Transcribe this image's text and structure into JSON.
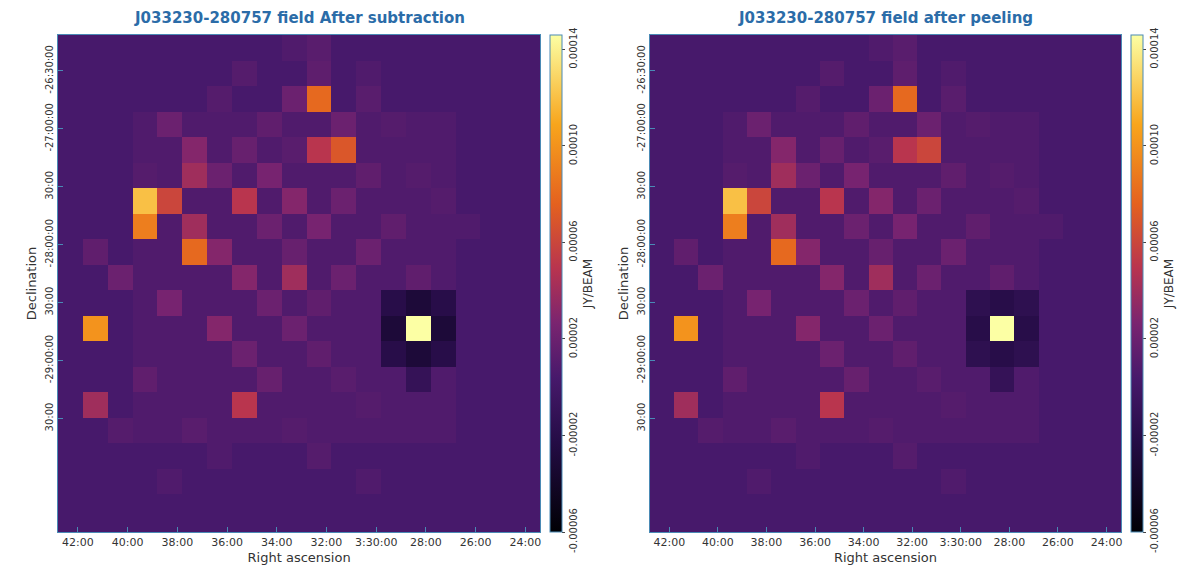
{
  "chart_data": [
    {
      "type": "heatmap",
      "title": "J033230-280757 field After subtraction",
      "x_label": "Right ascension",
      "y_label": "Declination",
      "colorbar_label": "JY/BEAM",
      "xlim": [
        42.8,
        23.4
      ],
      "ylim": [
        -30.48,
        -26.19
      ],
      "xticks": [
        {
          "value": 42,
          "label": "42:00"
        },
        {
          "value": 40,
          "label": "40:00"
        },
        {
          "value": 38,
          "label": "38:00"
        },
        {
          "value": 36,
          "label": "36:00"
        },
        {
          "value": 34,
          "label": "34:00"
        },
        {
          "value": 32,
          "label": "32:00"
        },
        {
          "value": 30,
          "label": "3:30:00"
        },
        {
          "value": 28,
          "label": "28:00"
        },
        {
          "value": 26,
          "label": "26:00"
        },
        {
          "value": 24,
          "label": "24:00"
        }
      ],
      "yticks": [
        {
          "value": -26.5,
          "label": "-26:30:00"
        },
        {
          "value": -27,
          "label": "-27:00:00"
        },
        {
          "value": -27.5,
          "label": "30:00"
        },
        {
          "value": -28,
          "label": "-28:00:00"
        },
        {
          "value": -28.5,
          "label": "30:00"
        },
        {
          "value": -29,
          "label": "-29:00:00"
        },
        {
          "value": -29.5,
          "label": "30:00"
        }
      ],
      "zlim": [
        -6e-05,
        0.000146
      ],
      "zticks": [
        -6e-05,
        -2e-05,
        2e-05,
        6e-05,
        {
          "value": 0.0001,
          "label": "0.00010"
        },
        0.00014
      ],
      "x": [
        42.3,
        41.3,
        40.3,
        39.3,
        38.3,
        37.3,
        36.3,
        35.3,
        34.3,
        33.3,
        32.3,
        31.3,
        30.3,
        29.3,
        28.3,
        27.3,
        26.3,
        25.3,
        24.3,
        23.3
      ],
      "y": [
        -26.3,
        -26.52,
        -26.74,
        -26.96,
        -27.18,
        -27.4,
        -27.62,
        -27.84,
        -28.06,
        -28.28,
        -28.5,
        -28.72,
        -28.94,
        -29.16,
        -29.38,
        -29.6,
        -29.82,
        -30.04,
        -30.26,
        -30.48
      ],
      "z": [
        [
          4e-06,
          4e-06,
          4e-06,
          4e-06,
          4e-06,
          4e-06,
          4e-06,
          4e-06,
          4e-06,
          8e-06,
          1.2e-05,
          4e-06,
          4e-06,
          4e-06,
          4e-06,
          4e-06,
          4e-06,
          4e-06,
          4e-06,
          4e-06
        ],
        [
          4e-06,
          4e-06,
          4e-06,
          4e-06,
          4e-06,
          4e-06,
          4e-06,
          1e-05,
          4e-06,
          4e-06,
          1.4e-05,
          4e-06,
          8e-06,
          4e-06,
          4e-06,
          4e-06,
          4e-06,
          4e-06,
          4e-06,
          4e-06
        ],
        [
          4e-06,
          4e-06,
          4e-06,
          4e-06,
          4e-06,
          4e-06,
          1e-05,
          4e-06,
          4e-06,
          2e-05,
          8e-05,
          4e-06,
          1.2e-05,
          4e-06,
          4e-06,
          4e-06,
          4e-06,
          4e-06,
          4e-06,
          4e-06
        ],
        [
          4e-06,
          4e-06,
          4e-06,
          8e-06,
          2e-05,
          8e-06,
          8e-06,
          8e-06,
          1.5e-05,
          8e-06,
          8e-06,
          2e-05,
          8e-06,
          1e-05,
          8e-06,
          8e-06,
          4e-06,
          4e-06,
          4e-06,
          4e-06
        ],
        [
          4e-06,
          4e-06,
          4e-06,
          8e-06,
          8e-06,
          3e-05,
          8e-06,
          1.8e-05,
          8e-06,
          1.2e-05,
          5e-05,
          7e-05,
          8e-06,
          8e-06,
          8e-06,
          8e-06,
          4e-06,
          4e-06,
          4e-06,
          4e-06
        ],
        [
          4e-06,
          4e-06,
          4e-06,
          1e-05,
          8e-06,
          4e-05,
          2e-05,
          8e-06,
          2.5e-05,
          8e-06,
          8e-06,
          8e-06,
          1.5e-05,
          8e-06,
          1e-05,
          8e-06,
          4e-06,
          4e-06,
          4e-06,
          4e-06
        ],
        [
          4e-06,
          4e-06,
          4e-06,
          0.00012,
          6e-05,
          8e-06,
          8e-06,
          5e-05,
          8e-06,
          3e-05,
          8e-06,
          2e-05,
          8e-06,
          8e-06,
          8e-06,
          1e-05,
          4e-06,
          4e-06,
          4e-06,
          4e-06
        ],
        [
          4e-06,
          4e-06,
          4e-06,
          9e-05,
          8e-06,
          4e-05,
          8e-06,
          8e-06,
          2e-05,
          8e-06,
          2.5e-05,
          8e-06,
          8e-06,
          1.5e-05,
          8e-06,
          8e-06,
          8e-06,
          4e-06,
          4e-06,
          4e-06
        ],
        [
          4e-06,
          1.5e-05,
          4e-06,
          8e-06,
          8e-06,
          8e-05,
          3e-05,
          8e-06,
          8e-06,
          1.8e-05,
          8e-06,
          8e-06,
          2e-05,
          8e-06,
          8e-06,
          8e-06,
          4e-06,
          4e-06,
          4e-06,
          4e-06
        ],
        [
          4e-06,
          4e-06,
          2e-05,
          8e-06,
          8e-06,
          8e-06,
          8e-06,
          3e-05,
          8e-06,
          4e-05,
          8e-06,
          2e-05,
          8e-06,
          8e-06,
          1.5e-05,
          8e-06,
          4e-06,
          4e-06,
          4e-06,
          4e-06
        ],
        [
          4e-06,
          4e-06,
          4e-06,
          8e-06,
          2.5e-05,
          8e-06,
          8e-06,
          8e-06,
          2e-05,
          8e-06,
          1.5e-05,
          8e-06,
          8e-06,
          -2e-05,
          -3e-05,
          -2e-05,
          4e-06,
          4e-06,
          4e-06,
          4e-06
        ],
        [
          4e-06,
          0.0001,
          4e-06,
          8e-06,
          8e-06,
          8e-06,
          3e-05,
          8e-06,
          8e-06,
          2e-05,
          8e-06,
          8e-06,
          8e-06,
          -3e-05,
          0.00015,
          -3e-05,
          4e-06,
          4e-06,
          4e-06,
          4e-06
        ],
        [
          4e-06,
          4e-06,
          4e-06,
          8e-06,
          8e-06,
          8e-06,
          8e-06,
          2e-05,
          8e-06,
          8e-06,
          1.5e-05,
          8e-06,
          8e-06,
          -2e-05,
          -3e-05,
          -2e-05,
          4e-06,
          4e-06,
          4e-06,
          4e-06
        ],
        [
          4e-06,
          4e-06,
          4e-06,
          1.5e-05,
          8e-06,
          8e-06,
          8e-06,
          8e-06,
          1.8e-05,
          8e-06,
          8e-06,
          1.2e-05,
          8e-06,
          8e-06,
          -1e-05,
          8e-06,
          4e-06,
          4e-06,
          4e-06,
          4e-06
        ],
        [
          4e-06,
          4e-05,
          4e-06,
          8e-06,
          8e-06,
          8e-06,
          8e-06,
          5e-05,
          8e-06,
          8e-06,
          8e-06,
          8e-06,
          1e-05,
          8e-06,
          8e-06,
          8e-06,
          4e-06,
          4e-06,
          4e-06,
          4e-06
        ],
        [
          4e-06,
          4e-06,
          1e-05,
          8e-06,
          8e-06,
          1.2e-05,
          8e-06,
          8e-06,
          8e-06,
          1e-05,
          8e-06,
          8e-06,
          8e-06,
          8e-06,
          8e-06,
          8e-06,
          4e-06,
          4e-06,
          4e-06,
          4e-06
        ],
        [
          4e-06,
          4e-06,
          4e-06,
          4e-06,
          4e-06,
          4e-06,
          8e-06,
          4e-06,
          4e-06,
          4e-06,
          1e-05,
          4e-06,
          4e-06,
          4e-06,
          4e-06,
          4e-06,
          4e-06,
          4e-06,
          4e-06,
          4e-06
        ],
        [
          4e-06,
          4e-06,
          4e-06,
          4e-06,
          8e-06,
          4e-06,
          4e-06,
          4e-06,
          4e-06,
          4e-06,
          4e-06,
          4e-06,
          8e-06,
          4e-06,
          4e-06,
          4e-06,
          4e-06,
          4e-06,
          4e-06,
          4e-06
        ],
        [
          4e-06,
          4e-06,
          4e-06,
          4e-06,
          4e-06,
          4e-06,
          4e-06,
          4e-06,
          4e-06,
          4e-06,
          4e-06,
          4e-06,
          4e-06,
          4e-06,
          4e-06,
          4e-06,
          4e-06,
          4e-06,
          4e-06,
          4e-06
        ],
        [
          4e-06,
          4e-06,
          4e-06,
          4e-06,
          4e-06,
          4e-06,
          4e-06,
          4e-06,
          4e-06,
          4e-06,
          4e-06,
          4e-06,
          4e-06,
          4e-06,
          4e-06,
          4e-06,
          4e-06,
          4e-06,
          4e-06,
          4e-06
        ]
      ]
    },
    {
      "type": "heatmap",
      "title": "J033230-280757 field after peeling",
      "x_label": "Right ascension",
      "y_label": "Declination",
      "colorbar_label": "JY/BEAM",
      "xlim": [
        42.8,
        23.4
      ],
      "ylim": [
        -30.48,
        -26.19
      ],
      "xticks": [
        {
          "value": 42,
          "label": "42:00"
        },
        {
          "value": 40,
          "label": "40:00"
        },
        {
          "value": 38,
          "label": "38:00"
        },
        {
          "value": 36,
          "label": "36:00"
        },
        {
          "value": 34,
          "label": "34:00"
        },
        {
          "value": 32,
          "label": "32:00"
        },
        {
          "value": 30,
          "label": "3:30:00"
        },
        {
          "value": 28,
          "label": "28:00"
        },
        {
          "value": 26,
          "label": "26:00"
        },
        {
          "value": 24,
          "label": "24:00"
        }
      ],
      "yticks": [
        {
          "value": -26.5,
          "label": "-26:30:00"
        },
        {
          "value": -27,
          "label": "-27:00:00"
        },
        {
          "value": -27.5,
          "label": "30:00"
        },
        {
          "value": -28,
          "label": "-28:00:00"
        },
        {
          "value": -28.5,
          "label": "30:00"
        },
        {
          "value": -29,
          "label": "-29:00:00"
        },
        {
          "value": -29.5,
          "label": "30:00"
        }
      ],
      "zlim": [
        -6e-05,
        0.000146
      ],
      "zticks": [
        -6e-05,
        -2e-05,
        2e-05,
        6e-05,
        {
          "value": 0.0001,
          "label": "0.00010"
        },
        0.00014
      ],
      "x": [
        42.3,
        41.3,
        40.3,
        39.3,
        38.3,
        37.3,
        36.3,
        35.3,
        34.3,
        33.3,
        32.3,
        31.3,
        30.3,
        29.3,
        28.3,
        27.3,
        26.3,
        25.3,
        24.3,
        23.3
      ],
      "y": [
        -26.3,
        -26.52,
        -26.74,
        -26.96,
        -27.18,
        -27.4,
        -27.62,
        -27.84,
        -28.06,
        -28.28,
        -28.5,
        -28.72,
        -28.94,
        -29.16,
        -29.38,
        -29.6,
        -29.82,
        -30.04,
        -30.26,
        -30.48
      ],
      "z": [
        [
          4e-06,
          4e-06,
          4e-06,
          4e-06,
          4e-06,
          4e-06,
          4e-06,
          4e-06,
          4e-06,
          8e-06,
          1.2e-05,
          4e-06,
          4e-06,
          4e-06,
          4e-06,
          4e-06,
          4e-06,
          4e-06,
          4e-06,
          4e-06
        ],
        [
          4e-06,
          4e-06,
          4e-06,
          4e-06,
          4e-06,
          4e-06,
          4e-06,
          1e-05,
          4e-06,
          4e-06,
          1.4e-05,
          4e-06,
          8e-06,
          4e-06,
          4e-06,
          4e-06,
          4e-06,
          4e-06,
          4e-06,
          4e-06
        ],
        [
          4e-06,
          4e-06,
          4e-06,
          4e-06,
          4e-06,
          4e-06,
          1e-05,
          4e-06,
          4e-06,
          2e-05,
          8e-05,
          4e-06,
          1.2e-05,
          4e-06,
          4e-06,
          4e-06,
          4e-06,
          4e-06,
          4e-06,
          4e-06
        ],
        [
          4e-06,
          4e-06,
          4e-06,
          8e-06,
          2e-05,
          8e-06,
          8e-06,
          8e-06,
          1.5e-05,
          8e-06,
          8e-06,
          2e-05,
          8e-06,
          1e-05,
          8e-06,
          8e-06,
          4e-06,
          4e-06,
          4e-06,
          4e-06
        ],
        [
          4e-06,
          4e-06,
          4e-06,
          8e-06,
          8e-06,
          3e-05,
          8e-06,
          1.8e-05,
          8e-06,
          1.2e-05,
          5e-05,
          6e-05,
          8e-06,
          8e-06,
          8e-06,
          8e-06,
          4e-06,
          4e-06,
          4e-06,
          4e-06
        ],
        [
          4e-06,
          4e-06,
          4e-06,
          1e-05,
          8e-06,
          4e-05,
          2e-05,
          8e-06,
          2.5e-05,
          8e-06,
          8e-06,
          8e-06,
          1.5e-05,
          8e-06,
          1e-05,
          8e-06,
          4e-06,
          4e-06,
          4e-06,
          4e-06
        ],
        [
          4e-06,
          4e-06,
          4e-06,
          0.00012,
          6e-05,
          8e-06,
          8e-06,
          5e-05,
          8e-06,
          3e-05,
          8e-06,
          2e-05,
          8e-06,
          8e-06,
          8e-06,
          1e-05,
          4e-06,
          4e-06,
          4e-06,
          4e-06
        ],
        [
          4e-06,
          4e-06,
          4e-06,
          9e-05,
          8e-06,
          4e-05,
          8e-06,
          8e-06,
          2e-05,
          8e-06,
          2.5e-05,
          8e-06,
          8e-06,
          1.5e-05,
          8e-06,
          8e-06,
          8e-06,
          4e-06,
          4e-06,
          4e-06
        ],
        [
          4e-06,
          1.5e-05,
          4e-06,
          8e-06,
          8e-06,
          8e-05,
          3e-05,
          8e-06,
          8e-06,
          1.8e-05,
          8e-06,
          8e-06,
          2e-05,
          8e-06,
          8e-06,
          8e-06,
          4e-06,
          4e-06,
          4e-06,
          4e-06
        ],
        [
          4e-06,
          4e-06,
          2e-05,
          8e-06,
          8e-06,
          8e-06,
          8e-06,
          3e-05,
          8e-06,
          4e-05,
          8e-06,
          2e-05,
          8e-06,
          8e-06,
          1.5e-05,
          8e-06,
          4e-06,
          4e-06,
          4e-06,
          4e-06
        ],
        [
          4e-06,
          4e-06,
          4e-06,
          8e-06,
          2.5e-05,
          8e-06,
          8e-06,
          8e-06,
          2e-05,
          8e-06,
          1.5e-05,
          8e-06,
          8e-06,
          -1.5e-05,
          -2e-05,
          -1.5e-05,
          4e-06,
          4e-06,
          4e-06,
          4e-06
        ],
        [
          4e-06,
          0.0001,
          4e-06,
          8e-06,
          8e-06,
          8e-06,
          3e-05,
          8e-06,
          8e-06,
          2e-05,
          8e-06,
          8e-06,
          8e-06,
          -2e-05,
          0.00015,
          -2e-05,
          4e-06,
          4e-06,
          4e-06,
          4e-06
        ],
        [
          4e-06,
          4e-06,
          4e-06,
          8e-06,
          8e-06,
          8e-06,
          8e-06,
          2e-05,
          8e-06,
          8e-06,
          1.5e-05,
          8e-06,
          8e-06,
          -1.5e-05,
          -2e-05,
          -1.5e-05,
          4e-06,
          4e-06,
          4e-06,
          4e-06
        ],
        [
          4e-06,
          4e-06,
          4e-06,
          1.5e-05,
          8e-06,
          8e-06,
          8e-06,
          8e-06,
          1.8e-05,
          8e-06,
          8e-06,
          1.2e-05,
          8e-06,
          8e-06,
          -1e-05,
          8e-06,
          4e-06,
          4e-06,
          4e-06,
          4e-06
        ],
        [
          4e-06,
          4e-05,
          4e-06,
          8e-06,
          8e-06,
          8e-06,
          8e-06,
          5e-05,
          8e-06,
          8e-06,
          8e-06,
          8e-06,
          1e-05,
          8e-06,
          8e-06,
          8e-06,
          4e-06,
          4e-06,
          4e-06,
          4e-06
        ],
        [
          4e-06,
          4e-06,
          1e-05,
          8e-06,
          8e-06,
          1.2e-05,
          8e-06,
          8e-06,
          8e-06,
          1e-05,
          8e-06,
          8e-06,
          8e-06,
          8e-06,
          8e-06,
          8e-06,
          4e-06,
          4e-06,
          4e-06,
          4e-06
        ],
        [
          4e-06,
          4e-06,
          4e-06,
          4e-06,
          4e-06,
          4e-06,
          8e-06,
          4e-06,
          4e-06,
          4e-06,
          1e-05,
          4e-06,
          4e-06,
          4e-06,
          4e-06,
          4e-06,
          4e-06,
          4e-06,
          4e-06,
          4e-06
        ],
        [
          4e-06,
          4e-06,
          4e-06,
          4e-06,
          8e-06,
          4e-06,
          4e-06,
          4e-06,
          4e-06,
          4e-06,
          4e-06,
          4e-06,
          8e-06,
          4e-06,
          4e-06,
          4e-06,
          4e-06,
          4e-06,
          4e-06,
          4e-06
        ],
        [
          4e-06,
          4e-06,
          4e-06,
          4e-06,
          4e-06,
          4e-06,
          4e-06,
          4e-06,
          4e-06,
          4e-06,
          4e-06,
          4e-06,
          4e-06,
          4e-06,
          4e-06,
          4e-06,
          4e-06,
          4e-06,
          4e-06,
          4e-06
        ],
        [
          4e-06,
          4e-06,
          4e-06,
          4e-06,
          4e-06,
          4e-06,
          4e-06,
          4e-06,
          4e-06,
          4e-06,
          4e-06,
          4e-06,
          4e-06,
          4e-06,
          4e-06,
          4e-06,
          4e-06,
          4e-06,
          4e-06,
          4e-06
        ]
      ]
    }
  ]
}
